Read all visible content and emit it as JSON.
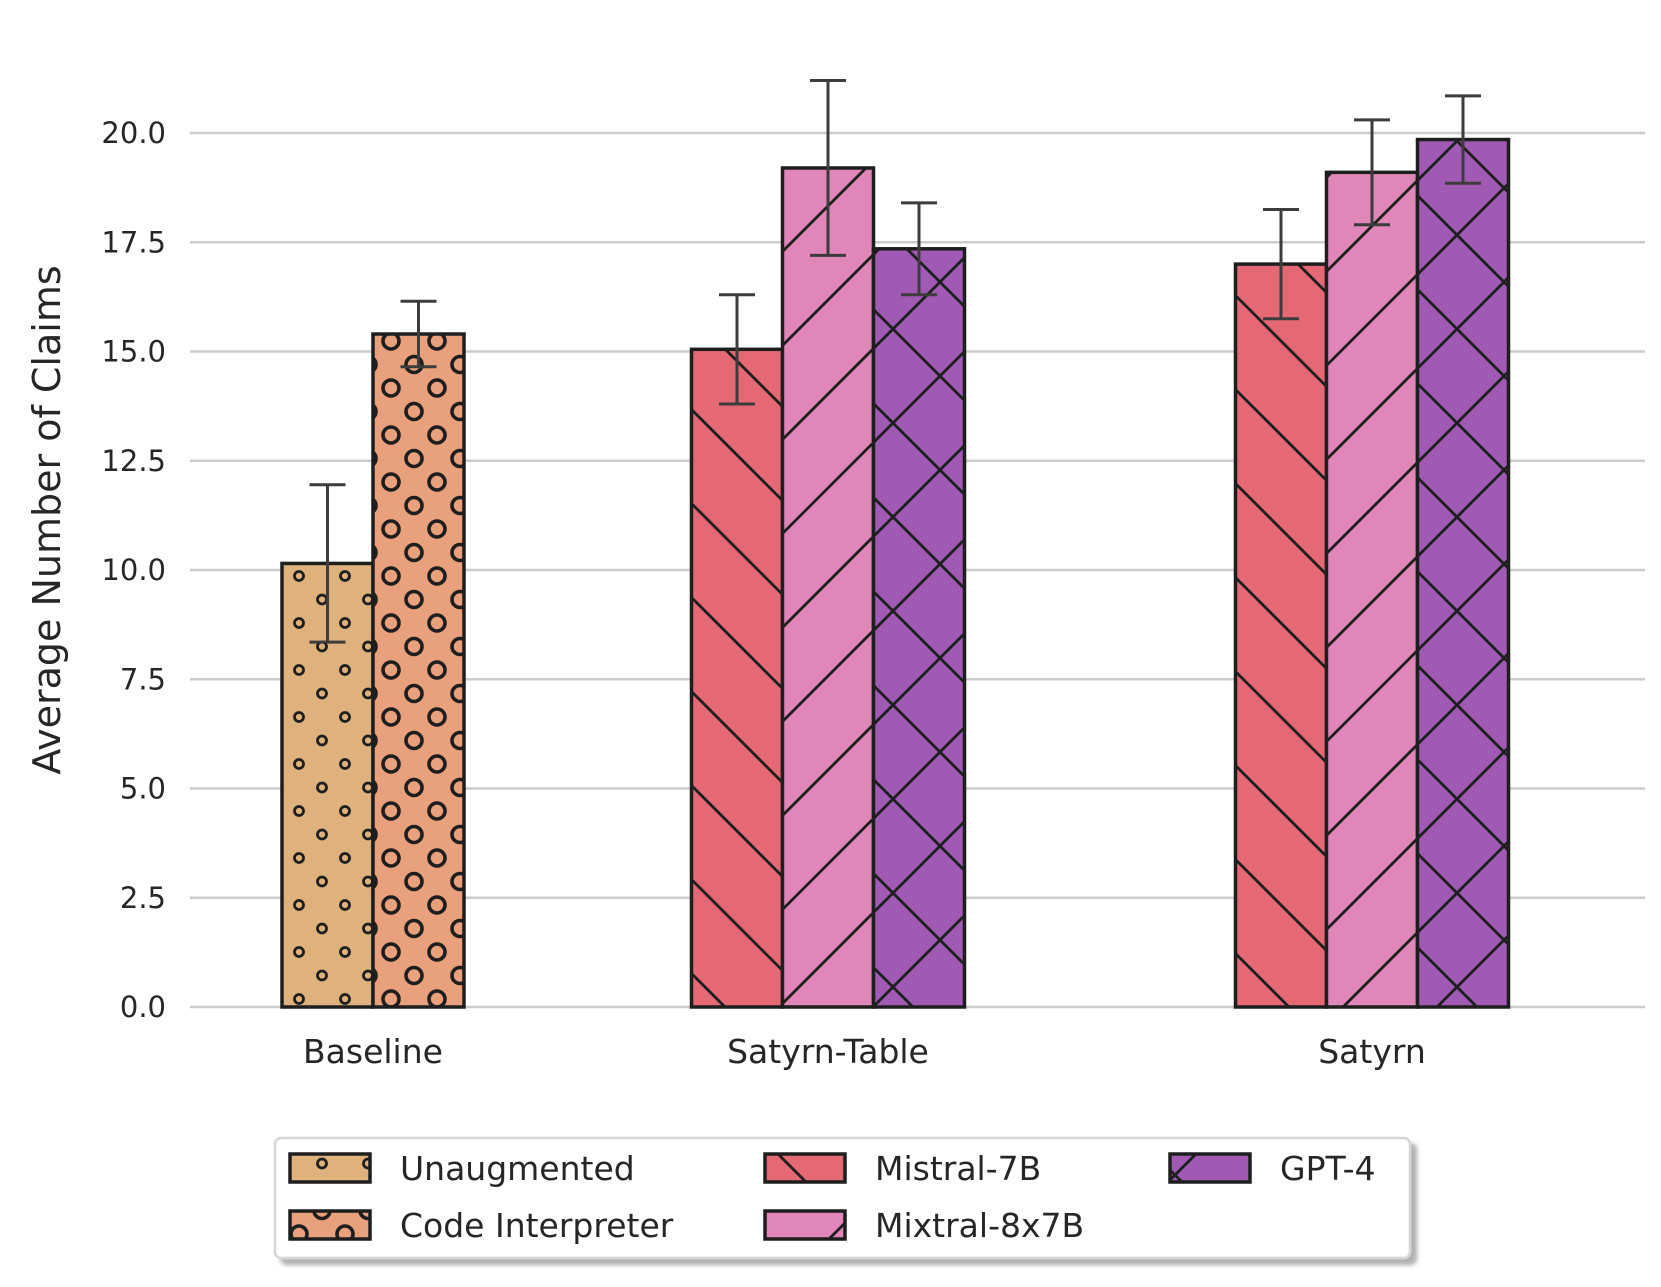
{
  "chart_data": {
    "type": "bar",
    "title": "",
    "xlabel": "",
    "ylabel": "Average Number of Claims",
    "ylim": [
      0,
      21.7
    ],
    "yticks": [
      "0.0",
      "2.5",
      "5.0",
      "7.5",
      "10.0",
      "12.5",
      "15.0",
      "17.5",
      "20.0"
    ],
    "grid": "horizontal",
    "legend_position": "bottom-center",
    "categories": [
      "Baseline",
      "Satyrn-Table",
      "Satyrn"
    ],
    "series": [
      {
        "name": "Unaugmented",
        "color": "#dfb27d",
        "pattern": "small-dots",
        "values": [
          10.15,
          null,
          null
        ],
        "errors": [
          1.8,
          null,
          null
        ]
      },
      {
        "name": "Code Interpreter",
        "color": "#e9a07c",
        "pattern": "rings",
        "values": [
          15.4,
          null,
          null
        ],
        "errors": [
          0.75,
          null,
          null
        ]
      },
      {
        "name": "Mistral-7B",
        "color": "#e56975",
        "pattern": "back-diagonal",
        "values": [
          null,
          15.05,
          17.0
        ],
        "errors": [
          null,
          1.25,
          1.25
        ]
      },
      {
        "name": "Mixtral-8x7B",
        "color": "#e086b8",
        "pattern": "forward-diagonal",
        "values": [
          null,
          19.2,
          19.1
        ],
        "errors": [
          null,
          2.0,
          1.2
        ]
      },
      {
        "name": "GPT-4",
        "color": "#a05ab4",
        "pattern": "crosshatch",
        "values": [
          null,
          17.35,
          19.85
        ],
        "errors": [
          null,
          1.05,
          1.0
        ]
      }
    ]
  }
}
